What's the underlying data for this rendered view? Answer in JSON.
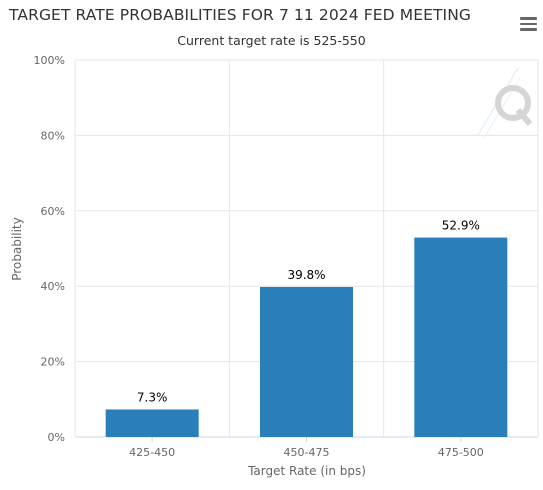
{
  "title": "TARGET RATE PROBABILITIES FOR 7 11 2024 FED MEETING",
  "subtitle": "Current target rate is 525-550",
  "icons": {
    "menu": "hamburger-menu-icon",
    "watermark": "q-logo-watermark"
  },
  "colors": {
    "bar": "#2a7fba",
    "grid": "#e6e6e6",
    "text": "#333333"
  },
  "chart_data": {
    "type": "bar",
    "categories": [
      "425-450",
      "450-475",
      "475-500"
    ],
    "values": [
      7.3,
      39.8,
      52.9
    ],
    "data_labels": [
      "7.3%",
      "39.8%",
      "52.9%"
    ],
    "xlabel": "Target Rate (in bps)",
    "ylabel": "Probability",
    "ylim": [
      0,
      100
    ],
    "yticks": [
      0,
      20,
      40,
      60,
      80,
      100
    ],
    "ytick_labels": [
      "0%",
      "20%",
      "40%",
      "60%",
      "80%",
      "100%"
    ],
    "grid": true,
    "legend": "none"
  }
}
